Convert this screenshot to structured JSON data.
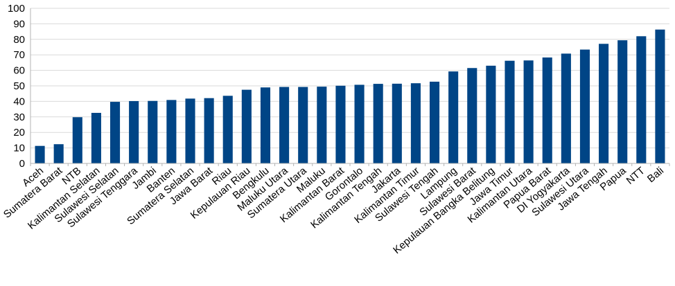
{
  "chart_data": {
    "type": "bar",
    "title": "",
    "xlabel": "",
    "ylabel": "",
    "ylim": [
      0,
      100
    ],
    "yticks": [
      0,
      10,
      20,
      30,
      40,
      50,
      60,
      70,
      80,
      90,
      100
    ],
    "grid": true,
    "legend": "none",
    "bar_color": "#004586",
    "categories": [
      "Aceh",
      "Sumatera Barat",
      "NTB",
      "Kalimantan Selatan",
      "Sulawesi Selatan",
      "Sulawesi Tenggara",
      "Jambi",
      "Banten",
      "Sumatera Selatan",
      "Jawa Barat",
      "Riau",
      "Kepulauan Riau",
      "Bengkulu",
      "Maluku Utara",
      "Sumatera Utara",
      "Maluku",
      "Kalimantan Barat",
      "Gorontalo",
      "Kalimantan Tengah",
      "Jakarta",
      "Kalimantan Timur",
      "Sulawesi Tengah",
      "Lampung",
      "Sulawesi Barat",
      "Kepulauan Bangka Belitung",
      "Jawa Timur",
      "Kalimantan Utara",
      "Papua Barat",
      "DI Yogyakarta",
      "Sulawesi Utara",
      "Jawa Tengah",
      "Papua",
      "NTT",
      "Bali"
    ],
    "values": [
      11.3,
      12.4,
      29.8,
      32.6,
      39.7,
      40.2,
      40.3,
      40.9,
      41.8,
      42.1,
      43.6,
      47.5,
      49.0,
      49.3,
      49.3,
      49.5,
      50.1,
      50.7,
      51.3,
      51.4,
      51.7,
      52.7,
      59.3,
      61.5,
      63.0,
      66.2,
      66.4,
      68.3,
      70.8,
      73.4,
      77.1,
      79.4,
      82.0,
      86.3
    ]
  }
}
